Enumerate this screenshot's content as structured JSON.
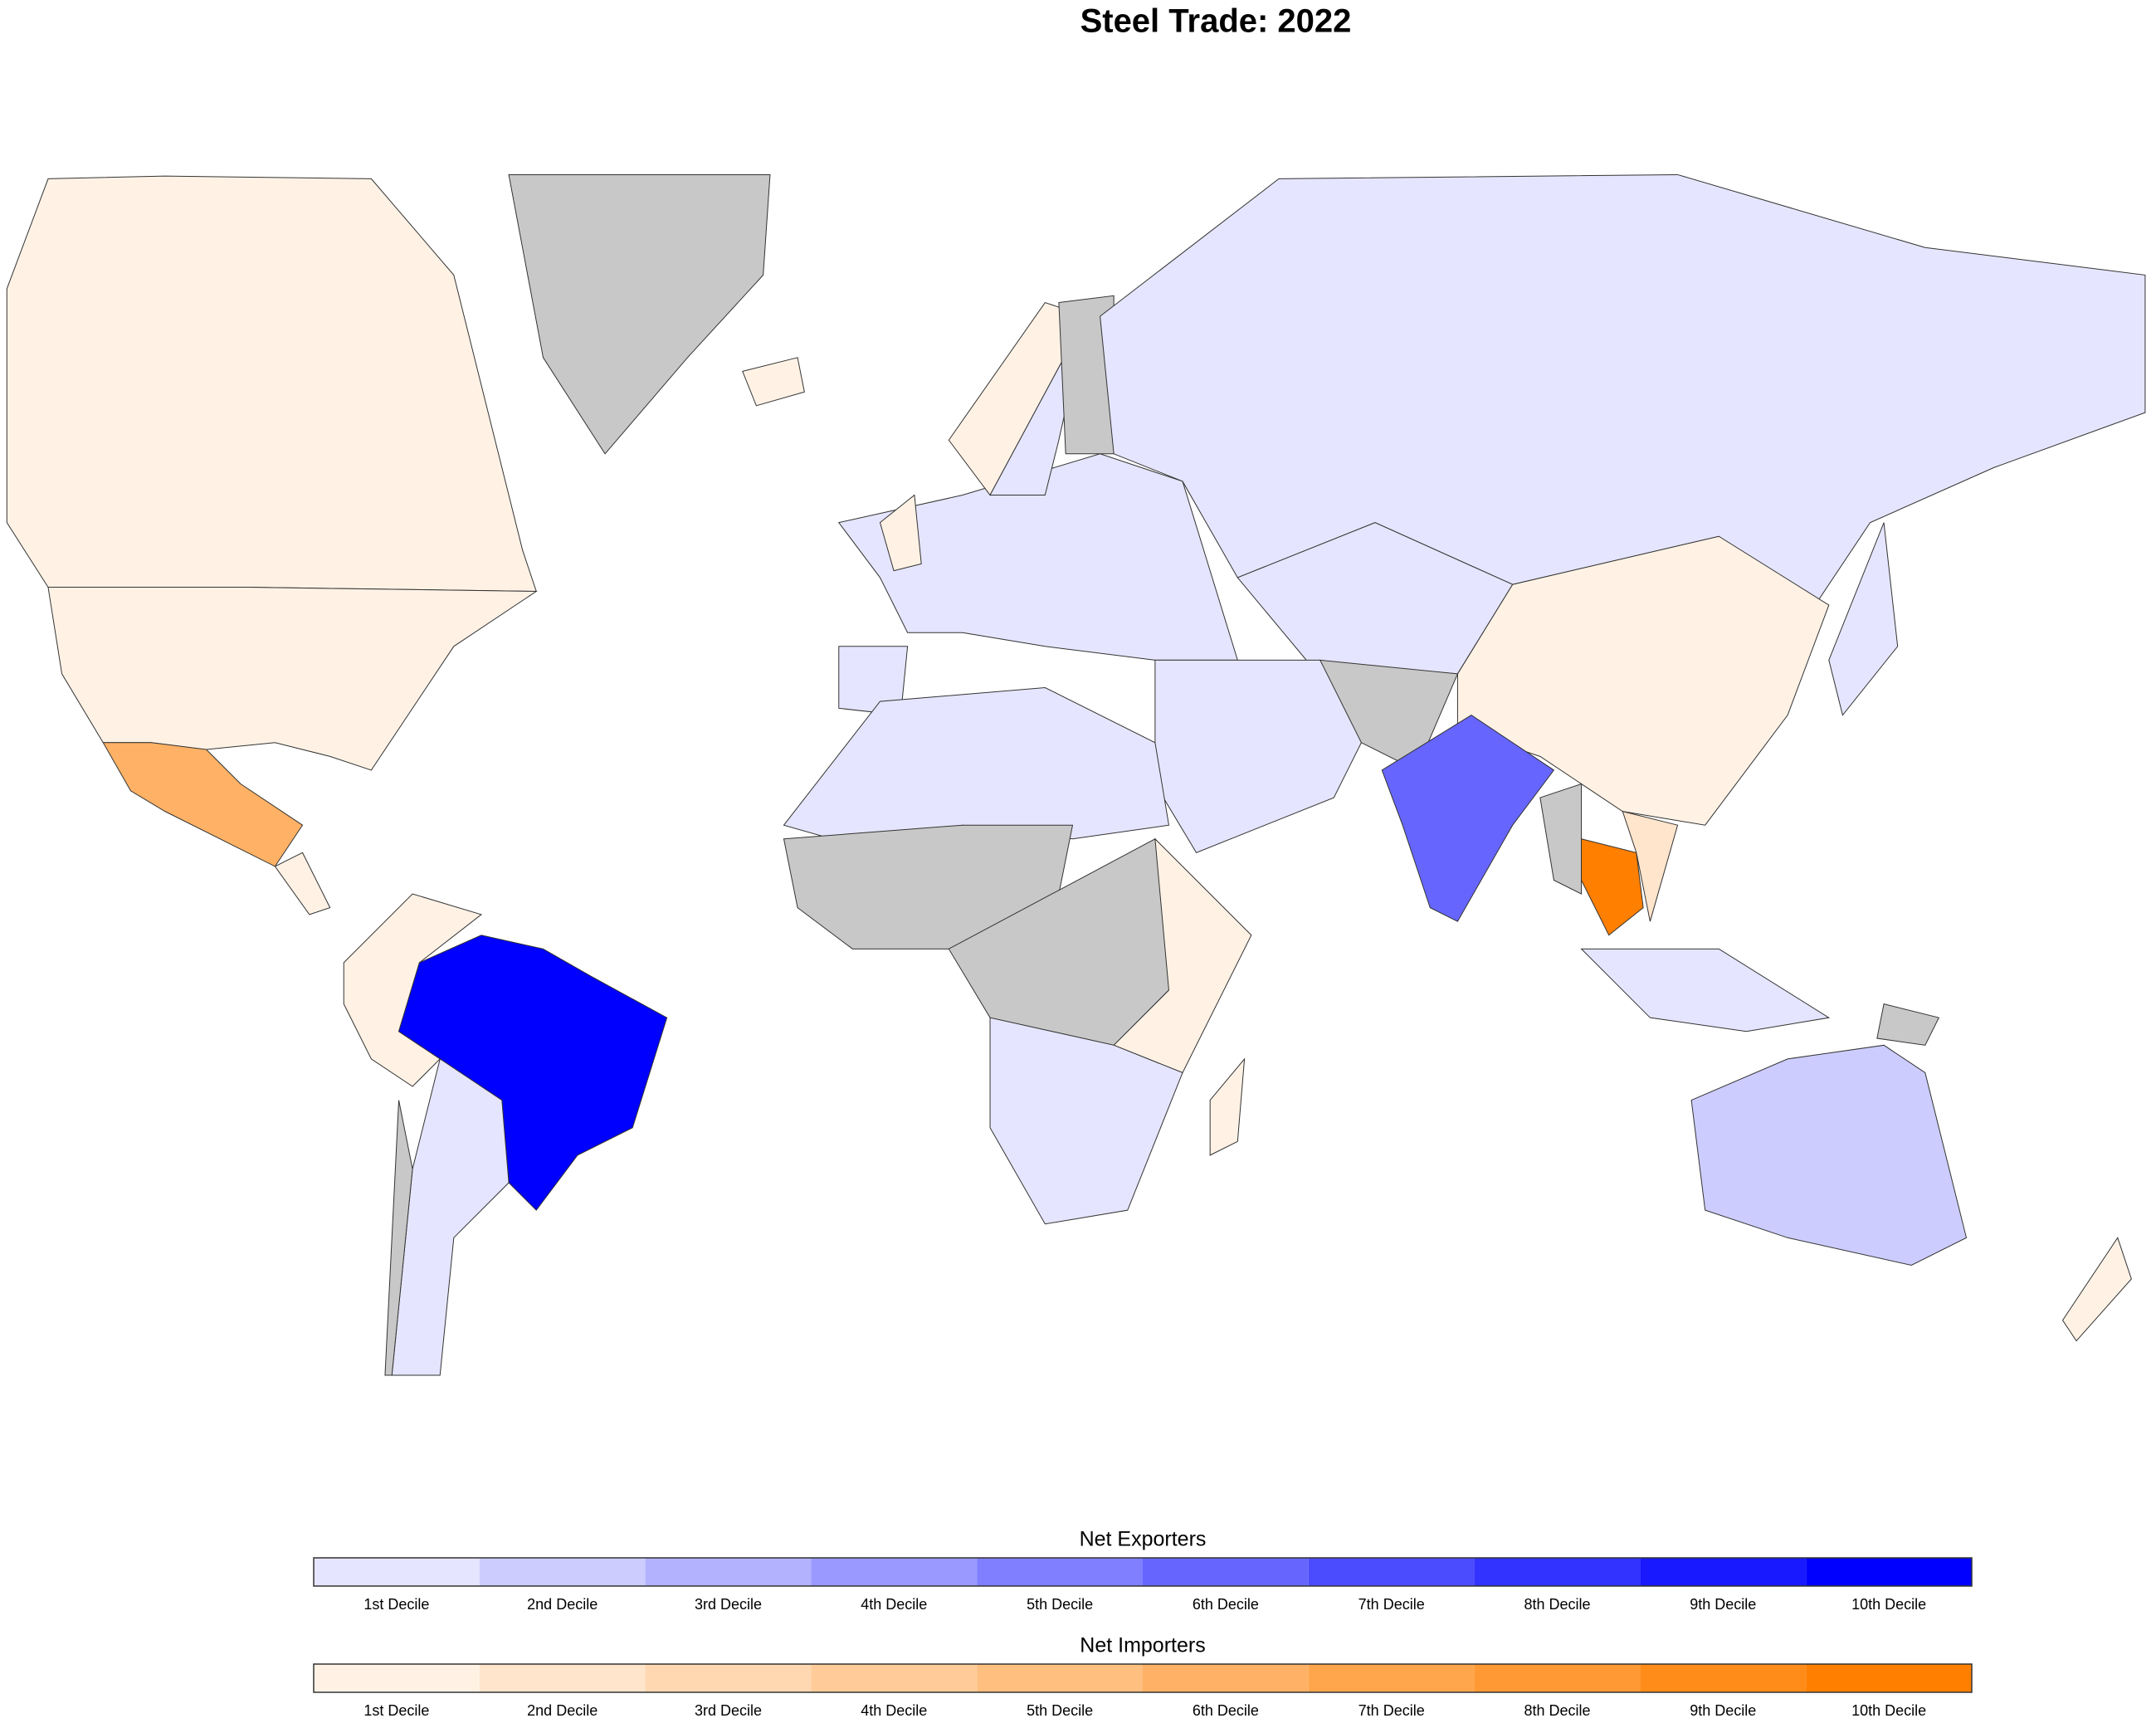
{
  "title": "Steel Trade: 2022",
  "legends": [
    {
      "title": "Net Exporters",
      "classes": [
        {
          "label": "1st Decile",
          "color": "#e5e5ff"
        },
        {
          "label": "2nd Decile",
          "color": "#ccccff"
        },
        {
          "label": "3rd Decile",
          "color": "#b2b2ff"
        },
        {
          "label": "4th Decile",
          "color": "#9999ff"
        },
        {
          "label": "5th Decile",
          "color": "#7f7fff"
        },
        {
          "label": "6th Decile",
          "color": "#6666ff"
        },
        {
          "label": "7th Decile",
          "color": "#4c4cff"
        },
        {
          "label": "8th Decile",
          "color": "#3333ff"
        },
        {
          "label": "9th Decile",
          "color": "#1919ff"
        },
        {
          "label": "10th Decile",
          "color": "#0000ff"
        }
      ]
    },
    {
      "title": "Net Importers",
      "classes": [
        {
          "label": "1st Decile",
          "color": "#fff2e5"
        },
        {
          "label": "2nd Decile",
          "color": "#ffe5cc"
        },
        {
          "label": "3rd Decile",
          "color": "#ffd8b2"
        },
        {
          "label": "4th Decile",
          "color": "#ffcc99"
        },
        {
          "label": "5th Decile",
          "color": "#ffbf7f"
        },
        {
          "label": "6th Decile",
          "color": "#ffb266"
        },
        {
          "label": "7th Decile",
          "color": "#ffa54c"
        },
        {
          "label": "8th Decile",
          "color": "#ff9933"
        },
        {
          "label": "9th Decile",
          "color": "#ff8c19"
        },
        {
          "label": "10th Decile",
          "color": "#ff7f00"
        }
      ]
    }
  ]
}
